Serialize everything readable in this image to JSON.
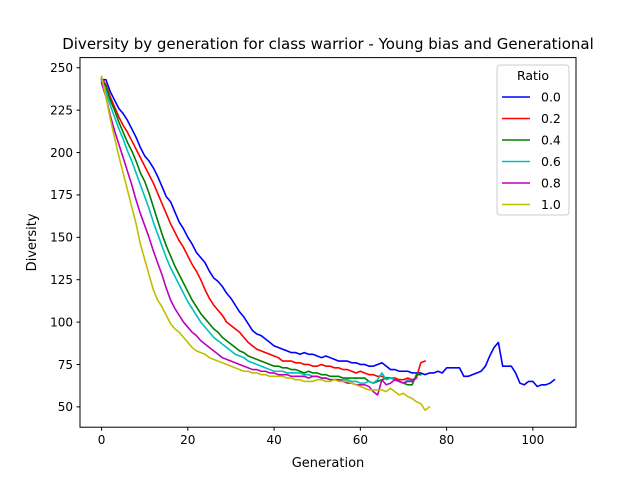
{
  "chart_data": {
    "type": "line",
    "title": "Diversity by generation for class warrior - Young bias and Generational",
    "xlabel": "Generation",
    "ylabel": "Diversity",
    "xlim": [
      -5,
      110
    ],
    "ylim": [
      38,
      256
    ],
    "xticks": [
      0,
      20,
      40,
      60,
      80,
      100
    ],
    "yticks": [
      50,
      75,
      100,
      125,
      150,
      175,
      200,
      225,
      250
    ],
    "grid": false,
    "legend": {
      "title": "Ratio",
      "placement": "top-right"
    },
    "series": [
      {
        "name": "0.0",
        "color": "#0000ff",
        "x": [
          0,
          1,
          2,
          3,
          4,
          5,
          6,
          7,
          8,
          9,
          10,
          11,
          12,
          13,
          14,
          15,
          16,
          17,
          18,
          19,
          20,
          21,
          22,
          23,
          24,
          25,
          26,
          27,
          28,
          29,
          30,
          31,
          32,
          33,
          34,
          35,
          36,
          37,
          38,
          39,
          40,
          41,
          42,
          43,
          44,
          45,
          46,
          47,
          48,
          49,
          50,
          51,
          52,
          53,
          54,
          55,
          56,
          57,
          58,
          59,
          60,
          61,
          62,
          63,
          64,
          65,
          66,
          67,
          68,
          69,
          70,
          71,
          72,
          73,
          74,
          75,
          76,
          77,
          78,
          79,
          80,
          81,
          82,
          83,
          84,
          85,
          86,
          87,
          88,
          89,
          90,
          91,
          92,
          93,
          94,
          95,
          96,
          97,
          98,
          99,
          100,
          101,
          102,
          103,
          104,
          105
        ],
        "values": [
          243,
          243,
          236,
          231,
          226,
          223,
          219,
          214,
          209,
          203,
          198,
          195,
          191,
          186,
          180,
          174,
          171,
          165,
          159,
          155,
          150,
          146,
          141,
          138,
          135,
          130,
          126,
          124,
          121,
          117,
          114,
          110,
          106,
          103,
          99,
          95,
          93,
          92,
          90,
          88,
          86,
          85,
          84,
          83,
          82,
          82,
          81,
          82,
          81,
          81,
          80,
          79,
          80,
          79,
          78,
          77,
          77,
          77,
          76,
          76,
          75,
          75,
          74,
          74,
          75,
          76,
          74,
          72,
          72,
          71,
          71,
          71,
          70,
          70,
          70,
          69,
          70,
          70,
          71,
          70,
          73,
          73,
          73,
          73,
          68,
          68,
          69,
          70,
          71,
          74,
          80,
          85,
          88,
          74,
          74,
          74,
          70,
          64,
          63,
          65,
          65,
          62,
          63,
          63,
          64,
          66
        ]
      },
      {
        "name": "0.2",
        "color": "#ff0000",
        "x": [
          0,
          1,
          2,
          3,
          4,
          5,
          6,
          7,
          8,
          9,
          10,
          11,
          12,
          13,
          14,
          15,
          16,
          17,
          18,
          19,
          20,
          21,
          22,
          23,
          24,
          25,
          26,
          27,
          28,
          29,
          30,
          31,
          32,
          33,
          34,
          35,
          36,
          37,
          38,
          39,
          40,
          41,
          42,
          43,
          44,
          45,
          46,
          47,
          48,
          49,
          50,
          51,
          52,
          53,
          54,
          55,
          56,
          57,
          58,
          59,
          60,
          61,
          62,
          63,
          64,
          65,
          66,
          67,
          68,
          69,
          70,
          71,
          72,
          73,
          74,
          75
        ],
        "values": [
          244,
          240,
          233,
          227,
          221,
          216,
          212,
          207,
          202,
          197,
          192,
          187,
          182,
          176,
          170,
          164,
          158,
          153,
          148,
          144,
          139,
          134,
          130,
          125,
          119,
          114,
          110,
          107,
          104,
          100,
          98,
          96,
          94,
          91,
          88,
          86,
          84,
          83,
          82,
          81,
          80,
          79,
          77,
          77,
          77,
          76,
          76,
          75,
          75,
          74,
          74,
          75,
          74,
          74,
          73,
          73,
          72,
          72,
          71,
          70,
          71,
          70,
          69,
          69,
          68,
          68,
          67,
          67,
          67,
          66,
          66,
          67,
          66,
          67,
          76,
          77
        ]
      },
      {
        "name": "0.4",
        "color": "#008000",
        "x": [
          0,
          1,
          2,
          3,
          4,
          5,
          6,
          7,
          8,
          9,
          10,
          11,
          12,
          13,
          14,
          15,
          16,
          17,
          18,
          19,
          20,
          21,
          22,
          23,
          24,
          25,
          26,
          27,
          28,
          29,
          30,
          31,
          32,
          33,
          34,
          35,
          36,
          37,
          38,
          39,
          40,
          41,
          42,
          43,
          44,
          45,
          46,
          47,
          48,
          49,
          50,
          51,
          52,
          53,
          54,
          55,
          56,
          57,
          58,
          59,
          60,
          61,
          62,
          63,
          64,
          65,
          66,
          67,
          68,
          69,
          70,
          71,
          72,
          73,
          74
        ],
        "values": [
          243,
          239,
          231,
          225,
          218,
          212,
          206,
          201,
          195,
          188,
          183,
          176,
          168,
          160,
          152,
          145,
          139,
          133,
          128,
          123,
          118,
          113,
          109,
          105,
          102,
          99,
          96,
          94,
          91,
          89,
          87,
          85,
          83,
          82,
          80,
          79,
          78,
          77,
          76,
          75,
          74,
          74,
          73,
          73,
          72,
          72,
          71,
          70,
          71,
          70,
          70,
          69,
          69,
          68,
          68,
          68,
          67,
          67,
          67,
          67,
          67,
          67,
          65,
          64,
          65,
          66,
          67,
          67,
          66,
          65,
          64,
          63,
          63,
          69,
          69
        ]
      },
      {
        "name": "0.6",
        "color": "#00bfbf",
        "x": [
          0,
          1,
          2,
          3,
          4,
          5,
          6,
          7,
          8,
          9,
          10,
          11,
          12,
          13,
          14,
          15,
          16,
          17,
          18,
          19,
          20,
          21,
          22,
          23,
          24,
          25,
          26,
          27,
          28,
          29,
          30,
          31,
          32,
          33,
          34,
          35,
          36,
          37,
          38,
          39,
          40,
          41,
          42,
          43,
          44,
          45,
          46,
          47,
          48,
          49,
          50,
          51,
          52,
          53,
          54,
          55,
          56,
          57,
          58,
          59,
          60,
          61,
          62,
          63,
          64,
          65,
          66,
          67,
          68,
          69,
          70,
          71,
          72,
          73
        ],
        "values": [
          242,
          236,
          228,
          221,
          214,
          208,
          201,
          195,
          188,
          181,
          174,
          167,
          159,
          152,
          145,
          138,
          132,
          127,
          122,
          117,
          112,
          108,
          104,
          100,
          97,
          94,
          91,
          89,
          87,
          85,
          83,
          81,
          80,
          79,
          77,
          76,
          75,
          74,
          73,
          72,
          71,
          71,
          71,
          70,
          70,
          70,
          70,
          69,
          69,
          68,
          68,
          67,
          67,
          66,
          66,
          66,
          66,
          66,
          65,
          65,
          64,
          64,
          65,
          64,
          66,
          70,
          66,
          67,
          66,
          65,
          64,
          66,
          65,
          67
        ]
      },
      {
        "name": "0.8",
        "color": "#bf00bf",
        "x": [
          0,
          1,
          2,
          3,
          4,
          5,
          6,
          7,
          8,
          9,
          10,
          11,
          12,
          13,
          14,
          15,
          16,
          17,
          18,
          19,
          20,
          21,
          22,
          23,
          24,
          25,
          26,
          27,
          28,
          29,
          30,
          31,
          32,
          33,
          34,
          35,
          36,
          37,
          38,
          39,
          40,
          41,
          42,
          43,
          44,
          45,
          46,
          47,
          48,
          49,
          50,
          51,
          52,
          53,
          54,
          55,
          56,
          57,
          58,
          59,
          60,
          61,
          62,
          63,
          64,
          65,
          66,
          67,
          68,
          69,
          70,
          71,
          72,
          73
        ],
        "values": [
          241,
          233,
          222,
          213,
          205,
          197,
          189,
          181,
          172,
          164,
          157,
          150,
          142,
          135,
          128,
          120,
          113,
          108,
          104,
          100,
          97,
          94,
          92,
          89,
          87,
          85,
          83,
          81,
          79,
          78,
          77,
          76,
          75,
          74,
          73,
          72,
          72,
          71,
          71,
          70,
          70,
          69,
          69,
          69,
          68,
          68,
          68,
          68,
          67,
          68,
          68,
          67,
          67,
          66,
          66,
          66,
          65,
          64,
          64,
          63,
          63,
          63,
          62,
          59,
          57,
          66,
          63,
          64,
          66,
          65,
          64,
          65,
          65,
          67
        ]
      },
      {
        "name": "1.0",
        "color": "#bfbf00",
        "x": [
          0,
          1,
          2,
          3,
          4,
          5,
          6,
          7,
          8,
          9,
          10,
          11,
          12,
          13,
          14,
          15,
          16,
          17,
          18,
          19,
          20,
          21,
          22,
          23,
          24,
          25,
          26,
          27,
          28,
          29,
          30,
          31,
          32,
          33,
          34,
          35,
          36,
          37,
          38,
          39,
          40,
          41,
          42,
          43,
          44,
          45,
          46,
          47,
          48,
          49,
          50,
          51,
          52,
          53,
          54,
          55,
          56,
          57,
          58,
          59,
          60,
          61,
          62,
          63,
          64,
          65,
          66,
          67,
          68,
          69,
          70,
          71,
          72,
          73,
          74,
          75,
          76
        ],
        "values": [
          245,
          233,
          220,
          209,
          198,
          188,
          178,
          168,
          158,
          146,
          137,
          128,
          119,
          113,
          109,
          104,
          99,
          96,
          94,
          91,
          88,
          85,
          83,
          82,
          81,
          79,
          78,
          77,
          76,
          75,
          74,
          73,
          72,
          71,
          71,
          70,
          70,
          69,
          69,
          68,
          68,
          68,
          68,
          67,
          67,
          66,
          66,
          65,
          65,
          65,
          66,
          66,
          65,
          65,
          66,
          65,
          65,
          65,
          64,
          63,
          62,
          61,
          60,
          60,
          60,
          60,
          59,
          61,
          59,
          57,
          58,
          56,
          55,
          53,
          52,
          48,
          50
        ]
      }
    ]
  }
}
